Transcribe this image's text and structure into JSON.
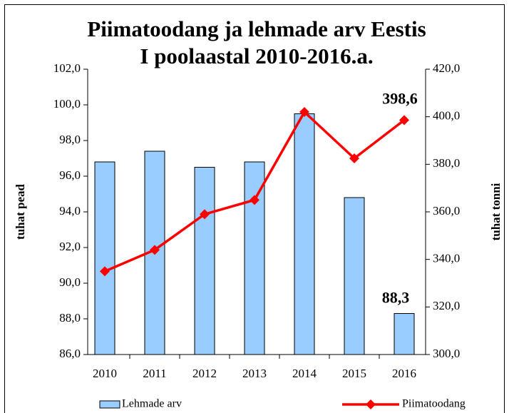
{
  "chart_data": {
    "type": "bar-line",
    "title": [
      "Piimatoodang ja lehmade arv Eestis",
      "I poolaastal 2010-2016.a."
    ],
    "y_label": "tuhat pead",
    "y2_label": "tuhat tonni",
    "categories": [
      "2010",
      "2011",
      "2012",
      "2013",
      "2014",
      "2015",
      "2016"
    ],
    "series": [
      {
        "name": "Lehmade arv",
        "type": "bar",
        "color": "#99ccff",
        "values": [
          96.8,
          97.4,
          96.5,
          96.8,
          99.5,
          94.8,
          88.3
        ],
        "value_labels": [
          null,
          null,
          null,
          null,
          null,
          null,
          "88,3"
        ]
      },
      {
        "name": "Piimatoodang",
        "type": "line",
        "axis": "y2",
        "color": "#ff0000",
        "values": [
          335,
          344,
          359,
          365,
          402,
          382.5,
          398.6
        ],
        "value_labels": [
          null,
          null,
          null,
          null,
          null,
          null,
          "398,6"
        ]
      }
    ],
    "ylim": [
      86,
      102
    ],
    "yticks": [
      {
        "value": 86,
        "label": "86,0"
      },
      {
        "value": 88,
        "label": "88,0"
      },
      {
        "value": 90,
        "label": "90,0"
      },
      {
        "value": 92,
        "label": "92,0"
      },
      {
        "value": 94,
        "label": "94,0"
      },
      {
        "value": 96,
        "label": "96,0"
      },
      {
        "value": 98,
        "label": "98,0"
      },
      {
        "value": 100,
        "label": "100,0"
      },
      {
        "value": 102,
        "label": "102,0"
      }
    ],
    "y2lim": [
      300,
      420
    ],
    "y2ticks": [
      {
        "value": 300,
        "label": "300,0"
      },
      {
        "value": 320,
        "label": "320,0"
      },
      {
        "value": 340,
        "label": "340,0"
      },
      {
        "value": 360,
        "label": "360,0"
      },
      {
        "value": 380,
        "label": "380,0"
      },
      {
        "value": 400,
        "label": "400,0"
      },
      {
        "value": 420,
        "label": "420,0"
      }
    ],
    "legend": "bottom"
  }
}
